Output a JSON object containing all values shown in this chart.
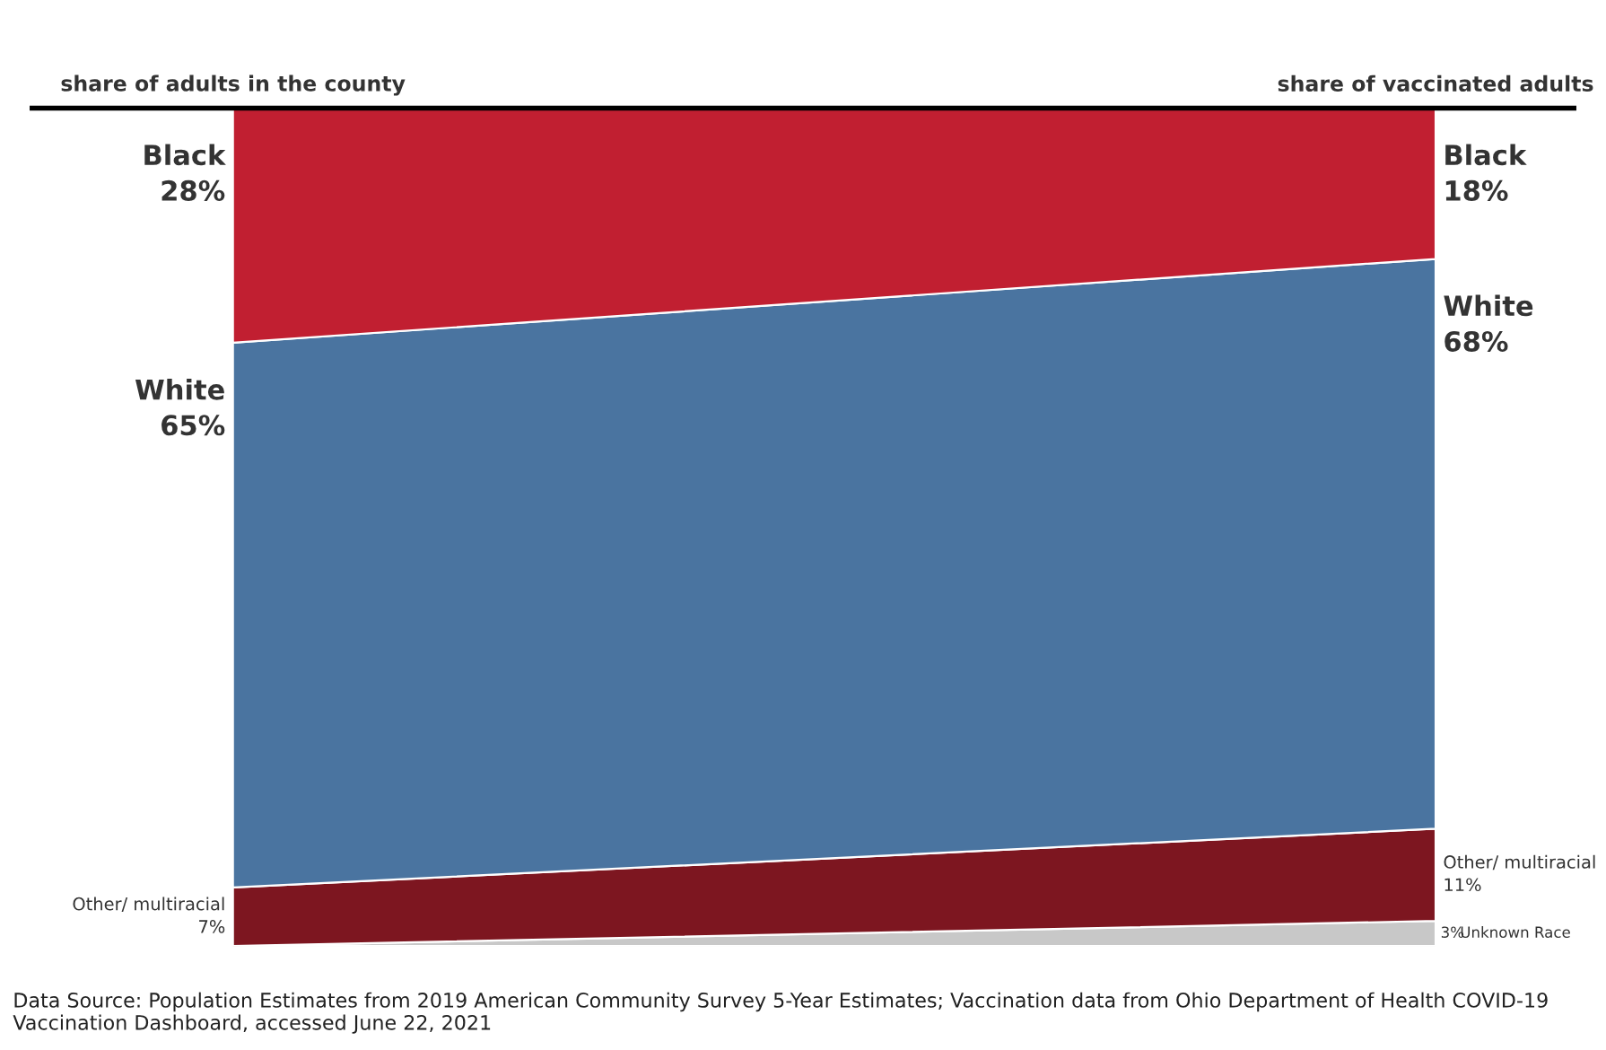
{
  "chart_data": {
    "type": "area",
    "stacked": true,
    "categories": [
      "share of adults in the county",
      "share of vaccinated adults"
    ],
    "series": [
      {
        "name": "Unknown Race",
        "color": "#c8c8c8",
        "values": [
          0,
          3
        ],
        "value_labels": [
          null,
          "3%"
        ]
      },
      {
        "name": "Other/ multiracial",
        "color": "#7d1620",
        "values": [
          7,
          11
        ],
        "value_labels": [
          "7%",
          "11%"
        ]
      },
      {
        "name": "White",
        "color": "#4a74a0",
        "values": [
          65,
          68
        ],
        "value_labels": [
          "65%",
          "68%"
        ]
      },
      {
        "name": "Black",
        "color": "#c11f31",
        "values": [
          28,
          18
        ],
        "value_labels": [
          "28%",
          "18%"
        ]
      }
    ],
    "annotations": [
      "Data Source: Population Estimates from 2019 American Community Survey 5-Year Estimates; Vaccination data from Ohio Department of Health COVID-19 Vaccination Dashboard, accessed June 22, 2021"
    ]
  }
}
